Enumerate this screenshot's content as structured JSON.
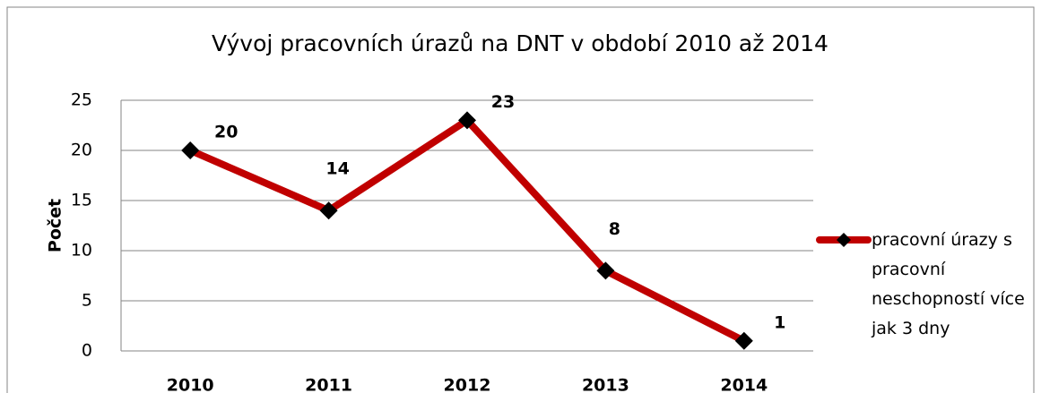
{
  "chart_data": {
    "type": "line",
    "title": "Vývoj pracovních úrazů na DNT v období 2010 až 2014",
    "y_label": "Počet",
    "categories": [
      "2010",
      "2011",
      "2012",
      "2013",
      "2014"
    ],
    "series": [
      {
        "name": "pracovní úrazy s pracovní neschopností více jak 3 dny",
        "color": "#c00000",
        "marker_color": "#000000",
        "values": [
          20,
          14,
          23,
          8,
          1
        ]
      }
    ],
    "ylim": [
      0,
      25
    ],
    "yticks": [
      0,
      5,
      10,
      15,
      20,
      25
    ],
    "grid": true,
    "legend": "right",
    "data_labels": true
  }
}
